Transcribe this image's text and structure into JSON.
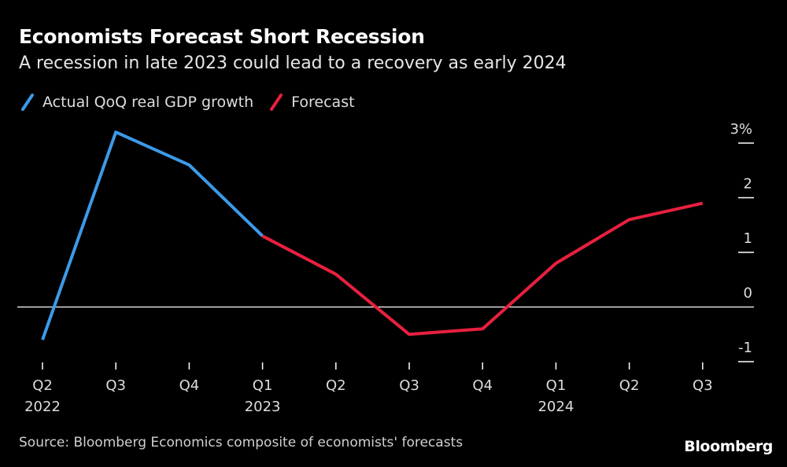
{
  "chart_data": {
    "type": "line",
    "title": "Economists Forecast Short Recession",
    "subtitle": "A recession in late 2023 could lead to a recovery as early 2024",
    "categories": [
      "Q2",
      "Q3",
      "Q4",
      "Q1",
      "Q2",
      "Q3",
      "Q4",
      "Q1",
      "Q2",
      "Q3"
    ],
    "year_labels": [
      "2022",
      "",
      "",
      "2023",
      "",
      "",
      "",
      "2024",
      "",
      ""
    ],
    "series": [
      {
        "name": "Actual QoQ real GDP growth",
        "color": "#3d9ae8",
        "values": [
          -0.6,
          3.2,
          2.6,
          1.3,
          null,
          null,
          null,
          null,
          null,
          null
        ]
      },
      {
        "name": "Forecast",
        "color": "#e8203f",
        "values": [
          null,
          null,
          null,
          1.3,
          0.6,
          -0.5,
          -0.4,
          0.8,
          1.6,
          1.9
        ]
      }
    ],
    "y_ticks": [
      {
        "value": 3,
        "label": "3%"
      },
      {
        "value": 2,
        "label": "2"
      },
      {
        "value": 1,
        "label": "1"
      },
      {
        "value": 0,
        "label": "0"
      },
      {
        "value": -1,
        "label": "-1"
      }
    ],
    "ylim": [
      -1,
      3
    ],
    "xlabel": "",
    "ylabel": ""
  },
  "footer": {
    "source": "Source: Bloomberg Economics composite of economists' forecasts",
    "brand": "Bloomberg"
  }
}
